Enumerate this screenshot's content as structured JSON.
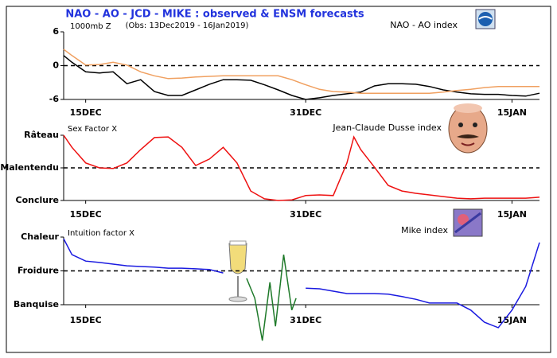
{
  "title": "NAO - AO - JCD - MIKE : observed & ENSM forecasts",
  "subtitle": "(Obs: 13Dec2019 - 16Jan2019)",
  "chart_data": [
    {
      "type": "line",
      "title": "NAO - AO index",
      "ylabel": "1000mb Z",
      "x": [
        13.4,
        14,
        15,
        16,
        17,
        18,
        19,
        20,
        21,
        22,
        23,
        24,
        25,
        26,
        27,
        28,
        29,
        30,
        31,
        32,
        33,
        34,
        35,
        36,
        37,
        38,
        39,
        40,
        41,
        42,
        43,
        44,
        45,
        46,
        47,
        48
      ],
      "xlim": [
        13.4,
        48
      ],
      "xticks": [
        {
          "value": 15,
          "label": "15DEC"
        },
        {
          "value": 31,
          "label": "31DEC"
        },
        {
          "value": 46,
          "label": "15JAN"
        }
      ],
      "ylim": [
        -6,
        6
      ],
      "yticks": [
        -6,
        0,
        6
      ],
      "series": [
        {
          "color": "#000000",
          "values": [
            1.8,
            0.6,
            -1.1,
            -1.3,
            -1.1,
            -3.2,
            -2.5,
            -4.6,
            -5.3,
            -5.3,
            -4.3,
            -3.3,
            -2.5,
            -2.5,
            -2.6,
            -3.4,
            -4.3,
            -5.3,
            -6.0,
            -5.7,
            -5.3,
            -5.0,
            -4.7,
            -3.6,
            -3.2,
            -3.2,
            -3.3,
            -3.7,
            -4.3,
            -4.7,
            -5.0,
            -5.1,
            -5.1,
            -5.3,
            -5.4,
            -4.9
          ]
        },
        {
          "color": "#f0a060",
          "values": [
            2.9,
            1.8,
            0.1,
            0.2,
            0.6,
            0.1,
            -1.1,
            -1.8,
            -2.3,
            -2.2,
            -2.0,
            -1.9,
            -1.8,
            -1.8,
            -1.8,
            -1.8,
            -1.8,
            -2.5,
            -3.4,
            -4.2,
            -4.6,
            -4.7,
            -4.9,
            -4.9,
            -4.9,
            -4.9,
            -4.9,
            -4.9,
            -4.7,
            -4.4,
            -4.2,
            -3.9,
            -3.7,
            -3.7,
            -3.7,
            -3.7
          ]
        }
      ]
    },
    {
      "type": "line",
      "title": "Jean-Claude Dusse index",
      "ylabel": "Sex Factor X",
      "x": [
        13.4,
        14,
        15,
        16,
        17,
        18,
        19,
        20,
        21,
        22,
        23,
        24,
        25,
        26,
        27,
        28,
        29,
        30,
        31,
        32,
        33,
        34,
        34.5,
        35,
        36,
        37,
        38,
        39,
        40,
        41,
        42,
        43,
        44,
        45,
        46,
        47,
        48
      ],
      "xlim": [
        13.4,
        48
      ],
      "xticks": [
        {
          "value": 15,
          "label": "15DEC"
        },
        {
          "value": 31,
          "label": "31DEC"
        },
        {
          "value": 46,
          "label": "15JAN"
        }
      ],
      "ylim": [
        -1,
        1
      ],
      "yticks": [
        {
          "value": -1,
          "label": "Conclure"
        },
        {
          "value": 0,
          "label": "Malentendu"
        },
        {
          "value": 1,
          "label": "Râteau"
        }
      ],
      "series": [
        {
          "color": "#ee1111",
          "values": [
            1.0,
            0.63,
            0.15,
            0.0,
            -0.02,
            0.15,
            0.56,
            0.93,
            0.95,
            0.63,
            0.07,
            0.27,
            0.63,
            0.15,
            -0.71,
            -0.95,
            -1.0,
            -0.98,
            -0.85,
            -0.83,
            -0.85,
            0.15,
            0.95,
            0.56,
            0.02,
            -0.54,
            -0.71,
            -0.78,
            -0.83,
            -0.88,
            -0.93,
            -0.95,
            -0.93,
            -0.93,
            -0.93,
            -0.93,
            -0.9
          ]
        }
      ]
    },
    {
      "type": "line",
      "title": "Mike index",
      "ylabel": "Intuition factor X",
      "x": [
        13.4,
        14,
        15,
        16,
        17,
        18,
        19,
        20,
        21,
        22,
        23,
        24,
        25,
        26,
        27,
        28,
        29,
        30,
        31,
        32,
        33,
        34,
        35,
        36,
        37,
        38,
        39,
        40,
        41,
        42,
        43,
        44,
        45,
        46,
        47,
        48
      ],
      "xlim": [
        13.4,
        48
      ],
      "xticks": [
        {
          "value": 15,
          "label": "15DEC"
        },
        {
          "value": 31,
          "label": "31DEC"
        },
        {
          "value": 46,
          "label": "15JAN"
        }
      ],
      "ylim": [
        -1,
        1
      ],
      "yticks": [
        {
          "value": -1,
          "label": "Banquise"
        },
        {
          "value": 0,
          "label": "Froidure"
        },
        {
          "value": 1,
          "label": "Chaleur"
        }
      ],
      "series": [
        {
          "color": "#1a1ae0",
          "values": [
            0.95,
            0.48,
            0.29,
            0.25,
            0.2,
            0.15,
            0.13,
            0.11,
            0.08,
            0.08,
            0.06,
            0.04,
            -0.06,
            null,
            null,
            null,
            null,
            null,
            -0.51,
            -0.53,
            -0.6,
            -0.67,
            -0.67,
            -0.67,
            -0.69,
            -0.76,
            -0.84,
            -0.95,
            -0.95,
            -0.95,
            -1.16,
            -1.52,
            -1.68,
            -1.16,
            -0.46,
            0.84
          ]
        },
        {
          "color": "#1f7a2a",
          "x": [
            26.7,
            27.3,
            27.85,
            28.4,
            28.8,
            29.4,
            29.99,
            30.3
          ],
          "values": [
            -0.22,
            -0.81,
            -2.06,
            -0.34,
            -1.64,
            0.48,
            -1.16,
            -0.81
          ]
        }
      ]
    }
  ]
}
